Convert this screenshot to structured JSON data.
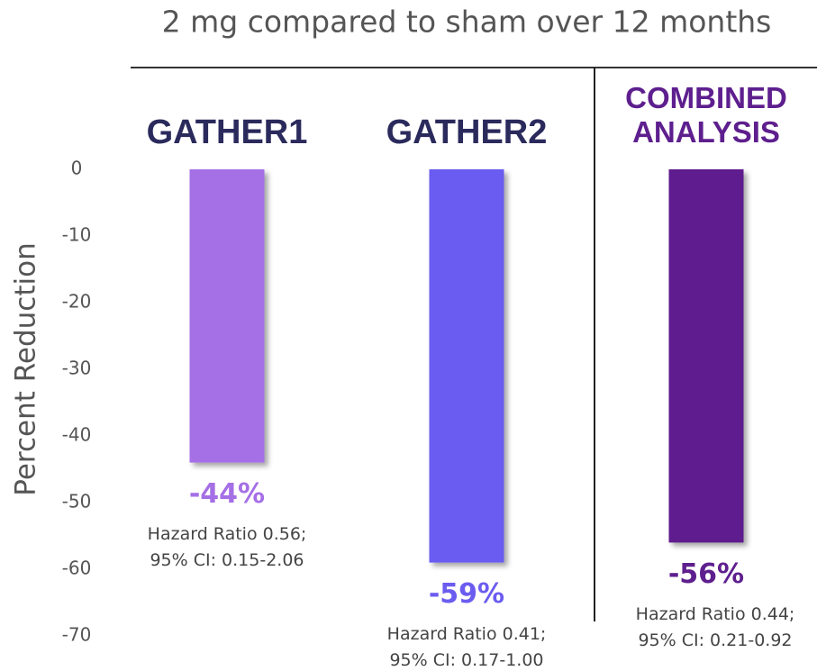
{
  "chart_data": {
    "type": "bar",
    "title": "2 mg compared to sham over 12 months",
    "ylabel": "Percent Reduction",
    "categories": [
      "GATHER1",
      "GATHER2",
      "COMBINED ANALYSIS"
    ],
    "category_colors": [
      "#2b2a5c",
      "#2b2a5c",
      "#5e1f8e"
    ],
    "values": [
      -44,
      -59,
      -56
    ],
    "value_labels": [
      "-44%",
      "-59%",
      "-56%"
    ],
    "colors": [
      "#a56fe6",
      "#6b5cf0",
      "#5e1f8e"
    ],
    "annotations": [
      [
        "Hazard Ratio 0.56;",
        "95% CI: 0.15-2.06"
      ],
      [
        "Hazard Ratio 0.41;",
        "95% CI: 0.17-1.00"
      ],
      [
        "Hazard Ratio 0.44;",
        "95% CI: 0.21-0.92"
      ]
    ],
    "ylim": [
      -70,
      0
    ],
    "yticks": [
      0,
      -10,
      -20,
      -30,
      -40,
      -50,
      -60,
      -70
    ]
  }
}
